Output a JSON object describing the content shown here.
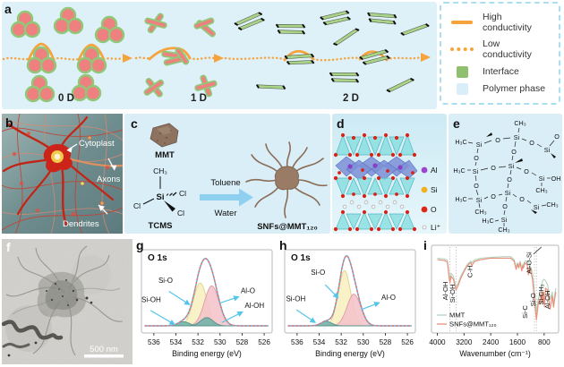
{
  "figure": {
    "panels": {
      "a": "a",
      "b": "b",
      "c": "c",
      "d": "d",
      "e": "e",
      "f": "f",
      "g": "g",
      "h": "h",
      "i": "i"
    }
  },
  "legend": {
    "items": [
      {
        "label": "High conductivity",
        "type": "line-solid",
        "color": "#f6a33c"
      },
      {
        "label": "Low conductivity",
        "type": "line-dotted",
        "color": "#f6a33c"
      },
      {
        "label": "Interface",
        "type": "square",
        "color": "#8fbf6f"
      },
      {
        "label": "Polymer phase",
        "type": "square",
        "color": "#d9eef8"
      }
    ]
  },
  "panel_a": {
    "labels": {
      "d0": "0 D",
      "d1": "1 D",
      "d2": "2 D"
    },
    "colors": {
      "background": "#def0f8",
      "particle": "#ef8080",
      "interface": "#90c878",
      "plate": "#a9d386",
      "path": "#f6a33c"
    }
  },
  "panel_b": {
    "cytoplast": "Cytoplast",
    "axons": "Axons",
    "dendrites": "Dendrites"
  },
  "panel_c": {
    "mmt": "MMT",
    "tcms": "TCMS",
    "toluene": "Toluene",
    "water": "Water",
    "product": "SNFs@MMT₁₂₀",
    "ch3": "CH₃",
    "si": "Si",
    "cl": "Cl"
  },
  "panel_d": {
    "legend": [
      {
        "label": "Al",
        "color": "#9b45cc"
      },
      {
        "label": "Si",
        "color": "#f2b01e"
      },
      {
        "label": "O",
        "color": "#e02616"
      },
      {
        "label": "Li⁺",
        "color": "#f7f7f7"
      }
    ]
  },
  "panel_e": {
    "atoms": {
      "h3c": "H₃C",
      "si": "Si",
      "o": "O",
      "oh": "OH",
      "ch3": "CH₃"
    }
  },
  "panel_f": {
    "scalebar": "500 nm"
  },
  "chart_data": [
    {
      "type": "xps",
      "panel": "g",
      "title": "O 1s",
      "xlabel": "Binding energy (eV)",
      "x_ticks": [
        536,
        534,
        532,
        530,
        528,
        526
      ],
      "x_range": [
        536.8,
        525.6
      ],
      "envelope_color": "#5fb8dd",
      "data_color": "#e57070",
      "arrow_color": "#55c5ea",
      "components": [
        {
          "name": "Si-O",
          "center": 531.8,
          "sigma": 0.62,
          "height": 0.62,
          "fill": "#f8f0c0",
          "stroke": "#e3d186"
        },
        {
          "name": "Al-O",
          "center": 530.75,
          "sigma": 0.66,
          "height": 0.58,
          "fill": "#f4c3ca",
          "stroke": "#e09aa5"
        },
        {
          "name": "Si-OH",
          "center": 533.3,
          "sigma": 0.5,
          "height": 0.06,
          "fill": "#6fb0a8",
          "stroke": "#55938b"
        },
        {
          "name": "Al-OH",
          "center": 531.2,
          "sigma": 0.55,
          "height": 0.12,
          "fill": "#6fb0a8",
          "stroke": "#55938b"
        }
      ],
      "annotations": [
        {
          "label": "Si-O",
          "text": [
            0.13,
            0.4
          ],
          "arrow": [
            [
              0.21,
              0.5
            ],
            [
              0.37,
              0.66
            ]
          ]
        },
        {
          "label": "Si-OH",
          "text": [
            0.0,
            0.63
          ],
          "arrow": [
            [
              0.07,
              0.73
            ],
            [
              0.255,
              0.9
            ]
          ]
        },
        {
          "label": "Al-O",
          "text": [
            0.76,
            0.52
          ],
          "arrow": [
            [
              0.6,
              0.64
            ],
            [
              0.745,
              0.565
            ]
          ]
        },
        {
          "label": "Al-OH",
          "text": [
            0.79,
            0.7
          ],
          "arrow": [
            [
              0.615,
              0.875
            ],
            [
              0.775,
              0.745
            ]
          ]
        }
      ]
    },
    {
      "type": "xps",
      "panel": "h",
      "title": "O 1s",
      "xlabel": "Binding energy (eV)",
      "x_ticks": [
        536,
        534,
        532,
        530,
        528,
        526
      ],
      "x_range": [
        536.8,
        525.6
      ],
      "envelope_color": "#5fb8dd",
      "data_color": "#e57070",
      "arrow_color": "#55c5ea",
      "components": [
        {
          "name": "Si-O",
          "center": 531.7,
          "sigma": 0.56,
          "height": 0.8,
          "fill": "#f8f0c0",
          "stroke": "#e3d186"
        },
        {
          "name": "Al-O",
          "center": 530.85,
          "sigma": 0.62,
          "height": 0.46,
          "fill": "#f4c3ca",
          "stroke": "#e09aa5"
        },
        {
          "name": "Si-OH",
          "center": 533.35,
          "sigma": 0.48,
          "height": 0.065,
          "fill": "#6fb0a8",
          "stroke": "#55938b"
        }
      ],
      "annotations": [
        {
          "label": "Si-O",
          "text": [
            0.2,
            0.3
          ],
          "arrow": [
            [
              0.31,
              0.42
            ],
            [
              0.41,
              0.58
            ]
          ]
        },
        {
          "label": "Si-OH",
          "text": [
            0.01,
            0.62
          ],
          "arrow": [
            [
              0.09,
              0.72
            ],
            [
              0.235,
              0.875
            ]
          ]
        },
        {
          "label": "Al-O",
          "text": [
            0.74,
            0.6
          ],
          "arrow": [
            [
              0.585,
              0.72
            ],
            [
              0.725,
              0.635
            ]
          ]
        }
      ]
    },
    {
      "type": "ftir",
      "panel": "i",
      "xlabel": "Wavenumber (cm⁻¹)",
      "x_ticks": [
        4000,
        3200,
        2400,
        1600,
        800
      ],
      "x_range": [
        4120,
        420
      ],
      "guides": [
        3620,
        3440,
        1090,
        1030
      ],
      "series": [
        {
          "name": "MMT",
          "color": "#b5d6c0",
          "points": [
            [
              4000,
              0.9
            ],
            [
              3800,
              0.89
            ],
            [
              3700,
              0.87
            ],
            [
              3640,
              0.66
            ],
            [
              3620,
              0.6
            ],
            [
              3590,
              0.7
            ],
            [
              3520,
              0.66
            ],
            [
              3440,
              0.52
            ],
            [
              3380,
              0.56
            ],
            [
              3300,
              0.66
            ],
            [
              3200,
              0.74
            ],
            [
              3100,
              0.82
            ],
            [
              3000,
              0.86
            ],
            [
              2960,
              0.84
            ],
            [
              2930,
              0.86
            ],
            [
              2870,
              0.88
            ],
            [
              2700,
              0.9
            ],
            [
              2400,
              0.91
            ],
            [
              2000,
              0.92
            ],
            [
              1800,
              0.92
            ],
            [
              1700,
              0.88
            ],
            [
              1640,
              0.78
            ],
            [
              1600,
              0.84
            ],
            [
              1560,
              0.8
            ],
            [
              1520,
              0.86
            ],
            [
              1470,
              0.76
            ],
            [
              1440,
              0.82
            ],
            [
              1420,
              0.8
            ],
            [
              1380,
              0.86
            ],
            [
              1300,
              0.86
            ],
            [
              1250,
              0.84
            ],
            [
              1150,
              0.7
            ],
            [
              1090,
              0.45
            ],
            [
              1030,
              0.18
            ],
            [
              980,
              0.35
            ],
            [
              940,
              0.42
            ],
            [
              915,
              0.38
            ],
            [
              880,
              0.55
            ],
            [
              840,
              0.6
            ],
            [
              800,
              0.62
            ],
            [
              760,
              0.6
            ],
            [
              700,
              0.55
            ],
            [
              620,
              0.35
            ],
            [
              560,
              0.45
            ],
            [
              520,
              0.3
            ],
            [
              470,
              0.45
            ],
            [
              450,
              0.5
            ]
          ]
        },
        {
          "name": "SNFs@MMT₁₂₀",
          "color": "#e98f79",
          "points": [
            [
              4000,
              0.88
            ],
            [
              3800,
              0.87
            ],
            [
              3700,
              0.85
            ],
            [
              3640,
              0.62
            ],
            [
              3620,
              0.57
            ],
            [
              3590,
              0.66
            ],
            [
              3520,
              0.62
            ],
            [
              3440,
              0.48
            ],
            [
              3380,
              0.53
            ],
            [
              3300,
              0.63
            ],
            [
              3200,
              0.72
            ],
            [
              3100,
              0.8
            ],
            [
              3000,
              0.84
            ],
            [
              2960,
              0.8
            ],
            [
              2930,
              0.83
            ],
            [
              2870,
              0.86
            ],
            [
              2700,
              0.88
            ],
            [
              2400,
              0.9
            ],
            [
              2000,
              0.9
            ],
            [
              1800,
              0.9
            ],
            [
              1700,
              0.86
            ],
            [
              1640,
              0.75
            ],
            [
              1600,
              0.82
            ],
            [
              1560,
              0.77
            ],
            [
              1520,
              0.84
            ],
            [
              1470,
              0.73
            ],
            [
              1440,
              0.8
            ],
            [
              1420,
              0.77
            ],
            [
              1380,
              0.84
            ],
            [
              1300,
              0.8
            ],
            [
              1270,
              0.68
            ],
            [
              1230,
              0.78
            ],
            [
              1150,
              0.62
            ],
            [
              1090,
              0.35
            ],
            [
              1030,
              0.08
            ],
            [
              980,
              0.28
            ],
            [
              940,
              0.35
            ],
            [
              915,
              0.3
            ],
            [
              880,
              0.45
            ],
            [
              845,
              0.3
            ],
            [
              820,
              0.45
            ],
            [
              790,
              0.25
            ],
            [
              760,
              0.5
            ],
            [
              700,
              0.48
            ],
            [
              620,
              0.22
            ],
            [
              560,
              0.4
            ],
            [
              520,
              0.25
            ],
            [
              470,
              0.4
            ],
            [
              450,
              0.45
            ]
          ]
        }
      ],
      "annotations": [
        {
          "label": "Al-OH",
          "x": 3690,
          "fy": 0.52
        },
        {
          "label": "Si-OH",
          "x": 3480,
          "fy": 0.55
        },
        {
          "label": "C-H",
          "x": 2950,
          "fy": 0.3
        },
        {
          "label": "Al-O-Si",
          "x": 1180,
          "fy": 0.2
        },
        {
          "label": "Si-C",
          "x": 1310,
          "fy": 0.76
        },
        {
          "label": "Si-O",
          "x": 1058,
          "fy": 0.62
        },
        {
          "label": "Si-CH₃",
          "x": 825,
          "fy": 0.56
        },
        {
          "label": "Al-OH",
          "x": 635,
          "fy": 0.62
        }
      ],
      "pointer": [
        [
          1120,
          0.1
        ],
        [
          880,
          0.02
        ]
      ],
      "legend": [
        {
          "name": "MMT"
        },
        {
          "name": "SNFs@MMT₁₂₀"
        }
      ]
    }
  ]
}
